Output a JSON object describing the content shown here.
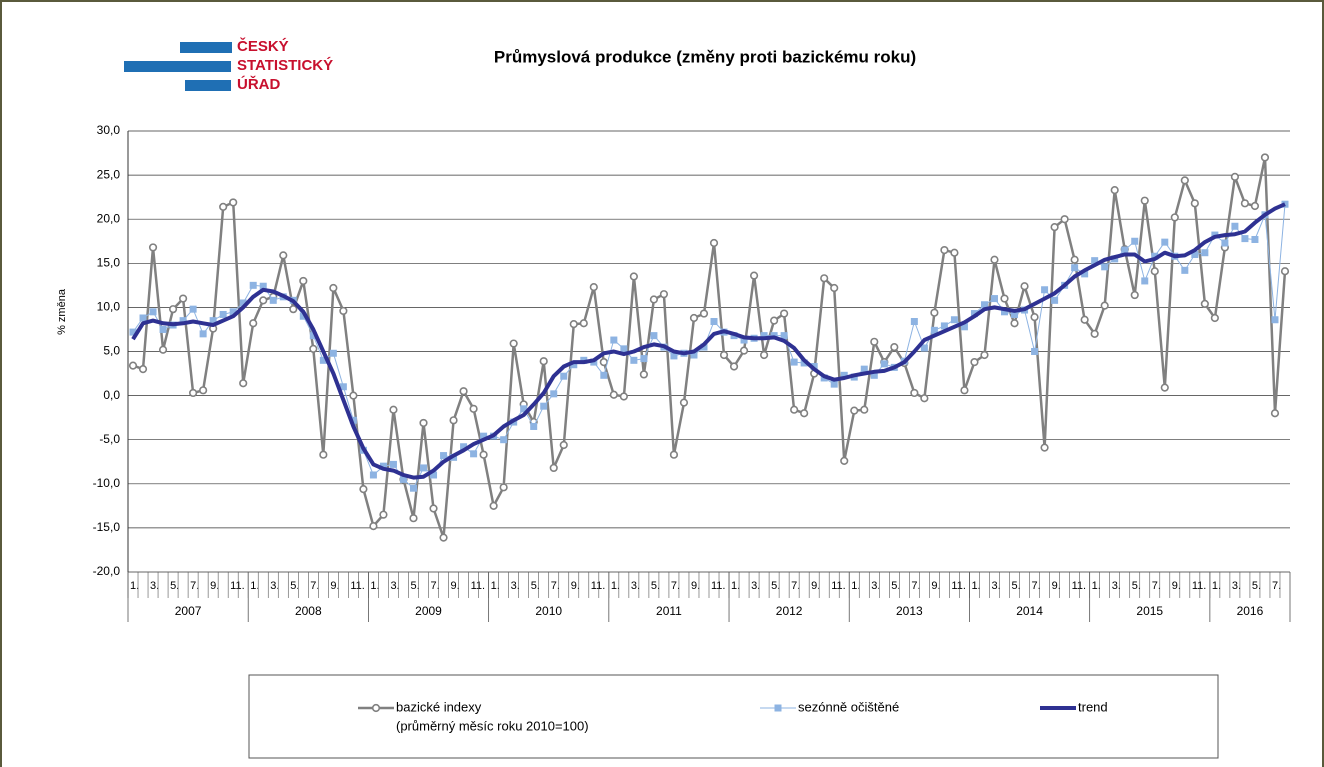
{
  "logo": [
    "ČESKÝ",
    "STATISTICKÝ",
    "ÚŘAD"
  ],
  "chart_data": {
    "type": "line",
    "title": "Průmyslová produkce (změny proti bazickému roku)",
    "y_label": "% změna",
    "categories": [
      "1.",
      null,
      "3.",
      null,
      "5.",
      null,
      "7.",
      null,
      "9.",
      null,
      "11.",
      null,
      "1.",
      null,
      "3.",
      null,
      "5.",
      null,
      "7.",
      null,
      "9.",
      null,
      "11.",
      null,
      "1.",
      null,
      "3.",
      null,
      "5.",
      null,
      "7.",
      null,
      "9.",
      null,
      "11.",
      null,
      "1.",
      null,
      "3.",
      null,
      "5.",
      null,
      "7.",
      null,
      "9.",
      null,
      "11.",
      null,
      "1.",
      null,
      "3.",
      null,
      "5.",
      null,
      "7.",
      null,
      "9.",
      null,
      "11.",
      null,
      "1.",
      null,
      "3.",
      null,
      "5.",
      null,
      "7.",
      null,
      "9.",
      null,
      "11.",
      null,
      "1.",
      null,
      "3.",
      null,
      "5.",
      null,
      "7.",
      null,
      "9.",
      null,
      "11.",
      null,
      "1.",
      null,
      "3.",
      null,
      "5.",
      null,
      "7.",
      null,
      "9.",
      null,
      "11.",
      null,
      "1.",
      null,
      "3.",
      null,
      "5.",
      null,
      "7.",
      null,
      "9.",
      null,
      "11.",
      null,
      "1.",
      null,
      "3.",
      null,
      "5.",
      null,
      "7.",
      null
    ],
    "years": [
      "2007",
      "2008",
      "2009",
      "2010",
      "2011",
      "2012",
      "2013",
      "2014",
      "2015",
      "2016"
    ],
    "ylim": [
      -20,
      30
    ],
    "yticks": [
      {
        "value": -20,
        "label": "-20,0"
      },
      {
        "value": -15,
        "label": "-15,0"
      },
      {
        "value": -10,
        "label": "-10,0"
      },
      {
        "value": -5,
        "label": "-5,0"
      },
      {
        "value": 0,
        "label": "0,0"
      },
      {
        "value": 5,
        "label": "5,0"
      },
      {
        "value": 10,
        "label": "10,0"
      },
      {
        "value": 15,
        "label": "15,0"
      },
      {
        "value": 20,
        "label": "20,0"
      },
      {
        "value": 25,
        "label": "25,0"
      },
      {
        "value": 30,
        "label": "30,0"
      }
    ],
    "grid": true,
    "series": [
      {
        "name": "bazické indexy",
        "note": "(průměrný měsíc roku 2010=100)",
        "color": "#808080",
        "marker": "circle",
        "values": [
          3.4,
          3.0,
          16.8,
          5.2,
          9.8,
          11.0,
          0.3,
          0.6,
          7.6,
          21.4,
          21.9,
          1.4,
          8.2,
          10.8,
          11.2,
          15.9,
          9.8,
          13.0,
          5.3,
          -6.7,
          12.2,
          9.6,
          0.0,
          -10.6,
          -14.8,
          -13.5,
          -1.6,
          -9.5,
          -13.9,
          -3.1,
          -12.8,
          -16.1,
          -2.8,
          0.5,
          -1.5,
          -6.7,
          -12.5,
          -10.4,
          5.9,
          -1.0,
          -3.0,
          3.9,
          -8.2,
          -5.6,
          8.1,
          8.2,
          12.3,
          3.8,
          0.1,
          -0.1,
          13.5,
          2.4,
          10.9,
          11.5,
          -6.7,
          -0.8,
          8.8,
          9.3,
          17.3,
          4.6,
          3.3,
          5.1,
          13.6,
          4.6,
          8.5,
          9.3,
          -1.6,
          -2.0,
          2.5,
          13.3,
          12.2,
          -7.4,
          -1.7,
          -1.6,
          6.1,
          3.8,
          5.5,
          3.7,
          0.3,
          -0.3,
          9.4,
          16.5,
          16.2,
          0.6,
          3.8,
          4.6,
          15.4,
          11.0,
          8.2,
          12.4,
          8.9,
          -5.9,
          19.1,
          20.0,
          15.4,
          8.6,
          7.0,
          10.2,
          23.3,
          16.6,
          11.4,
          22.1,
          14.1,
          0.9,
          20.2,
          24.4,
          21.8,
          10.4,
          8.8,
          16.8,
          24.8,
          21.8,
          21.5,
          27.0,
          -2.0,
          14.1
        ]
      },
      {
        "name": "sezónně očištěné",
        "color": "#8db3e2",
        "marker": "square",
        "values": [
          7.2,
          8.8,
          9.5,
          7.5,
          8.0,
          8.5,
          9.8,
          7.0,
          8.5,
          9.2,
          9.5,
          10.5,
          12.5,
          12.4,
          10.8,
          11.2,
          10.8,
          9.0,
          6.8,
          4.0,
          4.8,
          1.0,
          -2.8,
          -6.2,
          -9.0,
          -8.0,
          -7.8,
          -9.5,
          -10.5,
          -8.2,
          -9.0,
          -6.8,
          -7.0,
          -5.8,
          -6.6,
          -4.6,
          -4.6,
          -5.0,
          -3.0,
          -1.5,
          -3.5,
          -1.2,
          0.2,
          2.2,
          3.5,
          4.0,
          3.8,
          2.3,
          6.3,
          5.3,
          4.0,
          4.2,
          6.8,
          5.5,
          4.5,
          4.8,
          4.6,
          5.5,
          8.4,
          7.2,
          6.8,
          6.3,
          6.5,
          6.8,
          6.8,
          6.8,
          3.8,
          3.7,
          3.3,
          2.0,
          1.3,
          2.3,
          2.1,
          3.0,
          2.3,
          3.6,
          3.2,
          3.9,
          8.4,
          5.4,
          7.4,
          7.9,
          8.6,
          7.8,
          9.3,
          10.3,
          11.0,
          9.5,
          9.2,
          9.7,
          5.0,
          12.0,
          10.8,
          12.5,
          14.5,
          13.8,
          15.3,
          14.6,
          15.5,
          16.5,
          17.5,
          13.0,
          15.8,
          17.4,
          15.8,
          14.2,
          16.0,
          16.2,
          18.2,
          17.3,
          19.2,
          17.8,
          17.7,
          20.5,
          8.6,
          21.7
        ]
      },
      {
        "name": "trend",
        "color": "#2e3192",
        "marker": "none",
        "values": [
          6.4,
          8.2,
          8.5,
          8.2,
          8.1,
          8.2,
          8.4,
          8.2,
          8.0,
          8.5,
          9.0,
          10.0,
          11.2,
          12.0,
          11.8,
          11.3,
          10.7,
          9.5,
          7.5,
          5.0,
          2.5,
          -0.5,
          -3.5,
          -6.0,
          -7.8,
          -8.3,
          -8.5,
          -9.0,
          -9.3,
          -9.2,
          -8.5,
          -7.5,
          -6.8,
          -6.2,
          -5.5,
          -5.0,
          -4.5,
          -3.5,
          -2.8,
          -2.2,
          -1.0,
          0.3,
          2.2,
          3.3,
          3.8,
          3.8,
          4.0,
          4.8,
          5.0,
          4.7,
          5.0,
          5.5,
          5.8,
          5.6,
          5.0,
          4.8,
          5.0,
          5.8,
          7.0,
          7.3,
          7.0,
          6.6,
          6.5,
          6.5,
          6.6,
          6.2,
          5.4,
          4.0,
          3.0,
          2.2,
          1.8,
          2.0,
          2.3,
          2.5,
          2.7,
          2.8,
          3.2,
          3.8,
          5.0,
          6.3,
          6.8,
          7.3,
          7.8,
          8.3,
          9.0,
          9.8,
          10.0,
          9.8,
          9.6,
          9.8,
          10.4,
          11.0,
          11.6,
          12.5,
          13.5,
          14.2,
          14.8,
          15.4,
          15.7,
          16.0,
          16.0,
          15.2,
          15.5,
          16.2,
          15.8,
          15.9,
          16.5,
          17.4,
          18.0,
          18.2,
          18.3,
          18.6,
          19.6,
          20.5,
          21.2,
          21.7
        ]
      }
    ]
  }
}
